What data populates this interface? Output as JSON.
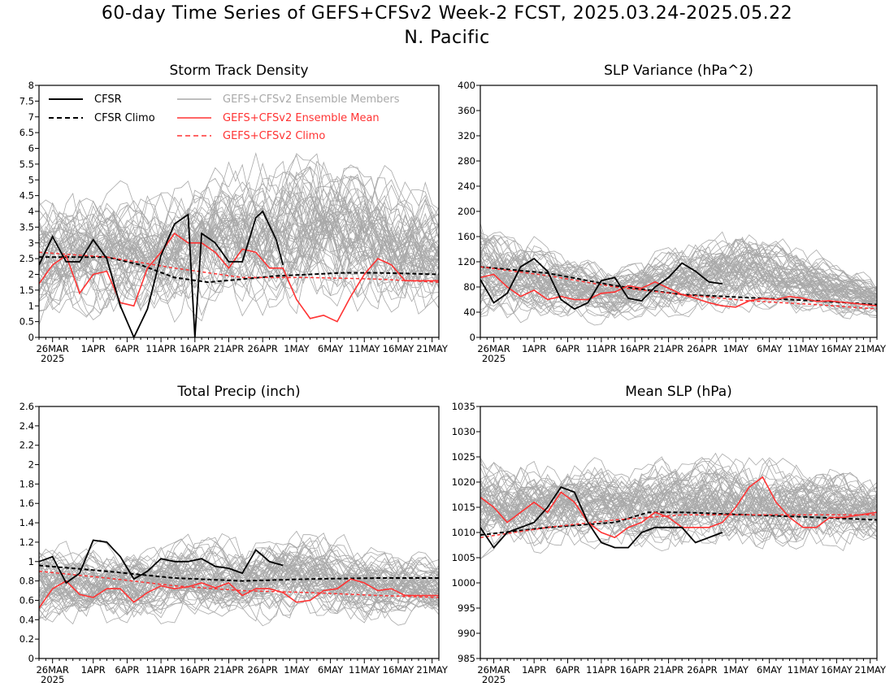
{
  "title_line1": "60-day Time Series of GEFS+CFSv2 Week-2 FCST, 2025.03.24-2025.05.22",
  "title_line2": "N. Pacific",
  "x_tick_labels": [
    "26MAR",
    "1APR",
    "6APR",
    "11APR",
    "16APR",
    "21APR",
    "26APR",
    "1MAY",
    "6MAY",
    "11MAY",
    "16MAY",
    "21MAY"
  ],
  "x_year_label": "2025",
  "legend": {
    "cfsr": "CFSR",
    "cfsr_climo": "CFSR Climo",
    "members": "GEFS+CFSv2 Ensemble Members",
    "ens_mean": "GEFS+CFSv2 Ensemble Mean",
    "gefs_climo": "GEFS+CFSv2 Climo"
  },
  "colors": {
    "cfsr": "#000000",
    "ens_mean": "#ff3333",
    "members": "#a9a9a9",
    "gefs_climo": "#ff3333"
  },
  "chart_data": [
    {
      "type": "line",
      "title": "Storm Track Density",
      "ylim": [
        0,
        8
      ],
      "yticks": [
        "0",
        "0.5",
        "1",
        "1.5",
        "2",
        "2.5",
        "3",
        "3.5",
        "4",
        "4.5",
        "5",
        "5.5",
        "6",
        "6.5",
        "7",
        "7.5",
        "8"
      ],
      "show_legend": true,
      "members_band": {
        "lo": [
          0.2,
          0.3,
          0.5,
          0.2
        ],
        "hi": [
          4.8,
          5.2,
          6.5,
          5.2
        ]
      },
      "series": {
        "cfsr": [
          [
            0,
            2.3
          ],
          [
            2,
            3.2
          ],
          [
            4,
            2.4
          ],
          [
            6,
            2.4
          ],
          [
            8,
            3.1
          ],
          [
            10,
            2.5
          ],
          [
            12,
            1.0
          ],
          [
            14,
            0.0
          ],
          [
            16,
            0.9
          ],
          [
            18,
            2.6
          ],
          [
            20,
            3.6
          ],
          [
            22,
            3.9
          ],
          [
            23,
            0.0
          ],
          [
            24,
            3.3
          ],
          [
            26,
            3.0
          ],
          [
            28,
            2.4
          ],
          [
            30,
            2.4
          ],
          [
            32,
            3.8
          ],
          [
            33,
            4.0
          ],
          [
            35,
            3.1
          ],
          [
            36,
            2.3
          ]
        ],
        "cfsr_climo": [
          [
            0,
            2.55
          ],
          [
            5,
            2.55
          ],
          [
            10,
            2.55
          ],
          [
            15,
            2.3
          ],
          [
            20,
            1.9
          ],
          [
            25,
            1.75
          ],
          [
            30,
            1.85
          ],
          [
            35,
            1.95
          ],
          [
            40,
            2.0
          ],
          [
            45,
            2.05
          ],
          [
            50,
            2.05
          ],
          [
            59,
            2.0
          ]
        ],
        "ens_mean": [
          [
            0,
            1.7
          ],
          [
            2,
            2.3
          ],
          [
            4,
            2.6
          ],
          [
            6,
            1.4
          ],
          [
            8,
            2.0
          ],
          [
            10,
            2.1
          ],
          [
            12,
            1.1
          ],
          [
            14,
            1.0
          ],
          [
            16,
            2.2
          ],
          [
            18,
            2.7
          ],
          [
            20,
            3.3
          ],
          [
            22,
            3.0
          ],
          [
            24,
            3.0
          ],
          [
            26,
            2.7
          ],
          [
            28,
            2.2
          ],
          [
            30,
            2.8
          ],
          [
            32,
            2.7
          ],
          [
            34,
            2.2
          ],
          [
            36,
            2.2
          ],
          [
            38,
            1.2
          ],
          [
            40,
            0.6
          ],
          [
            42,
            0.7
          ],
          [
            44,
            0.5
          ],
          [
            46,
            1.3
          ],
          [
            48,
            2.0
          ],
          [
            50,
            2.5
          ],
          [
            52,
            2.3
          ],
          [
            54,
            1.8
          ],
          [
            59,
            1.8
          ]
        ],
        "gefs_climo": [
          [
            0,
            2.7
          ],
          [
            10,
            2.55
          ],
          [
            20,
            2.2
          ],
          [
            30,
            1.9
          ],
          [
            40,
            1.9
          ],
          [
            50,
            1.85
          ],
          [
            59,
            1.75
          ]
        ]
      }
    },
    {
      "type": "line",
      "title": "SLP Variance (hPa^2)",
      "ylim": [
        0,
        400
      ],
      "yticks": [
        "0",
        "40",
        "80",
        "120",
        "160",
        "200",
        "240",
        "280",
        "320",
        "360",
        "400"
      ],
      "show_legend": false,
      "members_band": {
        "lo": [
          15,
          20,
          30,
          25
        ],
        "hi": [
          200,
          120,
          190,
          100
        ]
      },
      "series": {
        "cfsr": [
          [
            0,
            92
          ],
          [
            2,
            55
          ],
          [
            4,
            70
          ],
          [
            6,
            112
          ],
          [
            8,
            125
          ],
          [
            10,
            105
          ],
          [
            12,
            60
          ],
          [
            14,
            45
          ],
          [
            16,
            55
          ],
          [
            18,
            90
          ],
          [
            20,
            95
          ],
          [
            22,
            62
          ],
          [
            24,
            58
          ],
          [
            26,
            80
          ],
          [
            28,
            95
          ],
          [
            30,
            118
          ],
          [
            32,
            105
          ],
          [
            34,
            88
          ],
          [
            36,
            85
          ]
        ],
        "cfsr_climo": [
          [
            0,
            112
          ],
          [
            10,
            102
          ],
          [
            20,
            82
          ],
          [
            30,
            68
          ],
          [
            40,
            63
          ],
          [
            50,
            58
          ],
          [
            59,
            52
          ]
        ],
        "ens_mean": [
          [
            0,
            95
          ],
          [
            2,
            100
          ],
          [
            4,
            80
          ],
          [
            6,
            65
          ],
          [
            8,
            75
          ],
          [
            10,
            60
          ],
          [
            12,
            65
          ],
          [
            14,
            60
          ],
          [
            16,
            60
          ],
          [
            18,
            70
          ],
          [
            20,
            72
          ],
          [
            22,
            82
          ],
          [
            24,
            78
          ],
          [
            26,
            88
          ],
          [
            28,
            78
          ],
          [
            30,
            68
          ],
          [
            32,
            62
          ],
          [
            34,
            55
          ],
          [
            36,
            50
          ],
          [
            38,
            48
          ],
          [
            40,
            58
          ],
          [
            42,
            62
          ],
          [
            44,
            60
          ],
          [
            46,
            65
          ],
          [
            48,
            62
          ],
          [
            50,
            57
          ],
          [
            52,
            58
          ],
          [
            59,
            50
          ]
        ],
        "gefs_climo": [
          [
            0,
            112
          ],
          [
            10,
            98
          ],
          [
            20,
            80
          ],
          [
            30,
            68
          ],
          [
            40,
            58
          ],
          [
            50,
            52
          ],
          [
            59,
            45
          ]
        ]
      }
    },
    {
      "type": "line",
      "title": "Total Precip (inch)",
      "ylim": [
        0,
        2.6
      ],
      "yticks": [
        "0",
        "0.2",
        "0.4",
        "0.6",
        "0.8",
        "1",
        "1.2",
        "1.4",
        "1.6",
        "1.8",
        "2",
        "2.2",
        "2.4",
        "2.6"
      ],
      "show_legend": false,
      "members_band": {
        "lo": [
          0.25,
          0.3,
          0.3,
          0.3
        ],
        "hi": [
          1.25,
          1.3,
          1.4,
          1.1
        ]
      },
      "series": {
        "cfsr": [
          [
            0,
            1.0
          ],
          [
            2,
            1.05
          ],
          [
            4,
            0.78
          ],
          [
            6,
            0.88
          ],
          [
            8,
            1.22
          ],
          [
            10,
            1.2
          ],
          [
            12,
            1.05
          ],
          [
            14,
            0.82
          ],
          [
            16,
            0.9
          ],
          [
            18,
            1.03
          ],
          [
            20,
            1.0
          ],
          [
            22,
            1.0
          ],
          [
            24,
            1.03
          ],
          [
            26,
            0.95
          ],
          [
            28,
            0.93
          ],
          [
            30,
            0.88
          ],
          [
            32,
            1.12
          ],
          [
            34,
            1.0
          ],
          [
            36,
            0.96
          ]
        ],
        "cfsr_climo": [
          [
            0,
            0.96
          ],
          [
            10,
            0.9
          ],
          [
            20,
            0.83
          ],
          [
            30,
            0.8
          ],
          [
            40,
            0.82
          ],
          [
            50,
            0.83
          ],
          [
            59,
            0.83
          ]
        ],
        "ens_mean": [
          [
            0,
            0.52
          ],
          [
            2,
            0.72
          ],
          [
            4,
            0.8
          ],
          [
            6,
            0.66
          ],
          [
            8,
            0.63
          ],
          [
            10,
            0.72
          ],
          [
            12,
            0.72
          ],
          [
            14,
            0.58
          ],
          [
            16,
            0.68
          ],
          [
            18,
            0.75
          ],
          [
            20,
            0.72
          ],
          [
            22,
            0.74
          ],
          [
            24,
            0.78
          ],
          [
            26,
            0.73
          ],
          [
            28,
            0.78
          ],
          [
            30,
            0.65
          ],
          [
            32,
            0.72
          ],
          [
            34,
            0.72
          ],
          [
            36,
            0.68
          ],
          [
            38,
            0.58
          ],
          [
            40,
            0.6
          ],
          [
            42,
            0.7
          ],
          [
            44,
            0.72
          ],
          [
            46,
            0.82
          ],
          [
            48,
            0.78
          ],
          [
            50,
            0.7
          ],
          [
            52,
            0.72
          ],
          [
            54,
            0.65
          ],
          [
            59,
            0.65
          ]
        ],
        "gefs_climo": [
          [
            0,
            0.9
          ],
          [
            10,
            0.83
          ],
          [
            20,
            0.75
          ],
          [
            30,
            0.7
          ],
          [
            40,
            0.68
          ],
          [
            50,
            0.65
          ],
          [
            59,
            0.63
          ]
        ]
      }
    },
    {
      "type": "line",
      "title": "Mean SLP (hPa)",
      "ylim": [
        985,
        1035
      ],
      "yticks": [
        "985",
        "990",
        "995",
        "1000",
        "1005",
        "1010",
        "1015",
        "1020",
        "1025",
        "1030",
        "1035"
      ],
      "show_legend": false,
      "members_band": {
        "lo": [
          1004,
          1006,
          1004,
          1006
        ],
        "hi": [
          1027,
          1025,
          1028,
          1023
        ]
      },
      "series": {
        "cfsr": [
          [
            0,
            1011
          ],
          [
            2,
            1007
          ],
          [
            4,
            1010
          ],
          [
            6,
            1011
          ],
          [
            8,
            1012
          ],
          [
            10,
            1015
          ],
          [
            12,
            1019
          ],
          [
            14,
            1018
          ],
          [
            16,
            1012
          ],
          [
            18,
            1008
          ],
          [
            20,
            1007
          ],
          [
            22,
            1007
          ],
          [
            24,
            1010
          ],
          [
            26,
            1011
          ],
          [
            28,
            1011
          ],
          [
            30,
            1011
          ],
          [
            32,
            1008
          ],
          [
            34,
            1009
          ],
          [
            36,
            1010
          ]
        ],
        "cfsr_climo": [
          [
            0,
            1009.5
          ],
          [
            10,
            1011
          ],
          [
            20,
            1012
          ],
          [
            25,
            1014
          ],
          [
            30,
            1014
          ],
          [
            40,
            1013.5
          ],
          [
            50,
            1013
          ],
          [
            59,
            1012.5
          ]
        ],
        "ens_mean": [
          [
            0,
            1017
          ],
          [
            2,
            1015
          ],
          [
            4,
            1012
          ],
          [
            6,
            1014
          ],
          [
            8,
            1016
          ],
          [
            10,
            1014
          ],
          [
            12,
            1018
          ],
          [
            14,
            1016
          ],
          [
            16,
            1012
          ],
          [
            18,
            1010
          ],
          [
            20,
            1009
          ],
          [
            22,
            1011
          ],
          [
            24,
            1012
          ],
          [
            26,
            1014
          ],
          [
            28,
            1013
          ],
          [
            30,
            1011
          ],
          [
            32,
            1011
          ],
          [
            34,
            1011
          ],
          [
            36,
            1012
          ],
          [
            38,
            1015
          ],
          [
            40,
            1019
          ],
          [
            42,
            1021
          ],
          [
            44,
            1016
          ],
          [
            46,
            1013
          ],
          [
            48,
            1011
          ],
          [
            50,
            1011
          ],
          [
            52,
            1013
          ],
          [
            54,
            1013
          ],
          [
            59,
            1014
          ]
        ],
        "gefs_climo": [
          [
            0,
            1009
          ],
          [
            10,
            1011
          ],
          [
            20,
            1012.5
          ],
          [
            30,
            1013.5
          ],
          [
            40,
            1013.5
          ],
          [
            50,
            1013.5
          ],
          [
            59,
            1013.5
          ]
        ]
      }
    }
  ]
}
